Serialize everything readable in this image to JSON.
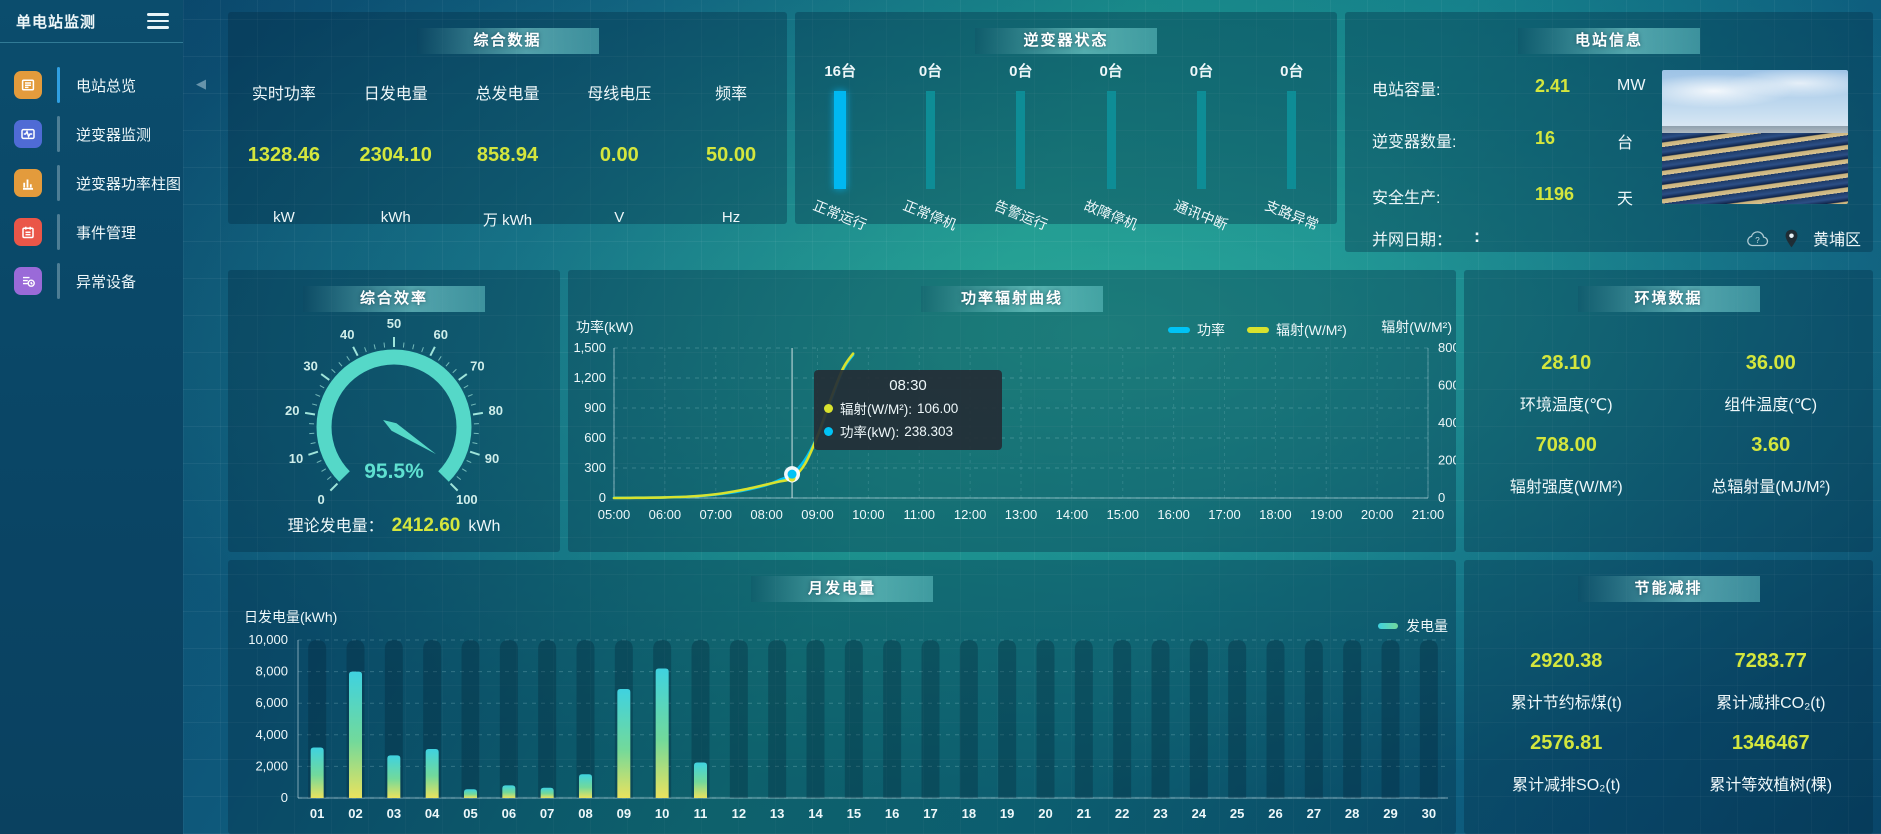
{
  "app": {
    "title": "单电站监测",
    "collapse_icon": "◀"
  },
  "sidebar": {
    "items": [
      {
        "label": "电站总览",
        "icon": "station-overview-icon",
        "icon_bg": "#e39b3c",
        "active": true
      },
      {
        "label": "逆变器监测",
        "icon": "inverter-monitor-icon",
        "icon_bg": "#4f6bd5",
        "active": false
      },
      {
        "label": "逆变器功率柱图",
        "icon": "inverter-power-bars-icon",
        "icon_bg": "#e39b3c",
        "active": false
      },
      {
        "label": "事件管理",
        "icon": "event-management-icon",
        "icon_bg": "#ea5648",
        "active": false
      },
      {
        "label": "异常设备",
        "icon": "abnormal-device-icon",
        "icon_bg": "#9a6ad8",
        "active": false
      }
    ]
  },
  "summary": {
    "title": "综合数据",
    "metrics": [
      {
        "label": "实时功率",
        "value": "1328.46",
        "unit": "kW"
      },
      {
        "label": "日发电量",
        "value": "2304.10",
        "unit": "kWh"
      },
      {
        "label": "总发电量",
        "value": "858.94",
        "unit": "万 kWh"
      },
      {
        "label": "母线电压",
        "value": "0.00",
        "unit": "V"
      },
      {
        "label": "频率",
        "value": "50.00",
        "unit": "Hz"
      }
    ]
  },
  "inverter_status": {
    "title": "逆变器状态",
    "colors": {
      "highlight": "#00b8f1",
      "normal": "#0e8d96"
    },
    "bars": [
      {
        "count": "16台",
        "label": "正常运行",
        "highlight": true
      },
      {
        "count": "0台",
        "label": "正常停机",
        "highlight": false
      },
      {
        "count": "0台",
        "label": "告警运行",
        "highlight": false
      },
      {
        "count": "0台",
        "label": "故障停机",
        "highlight": false
      },
      {
        "count": "0台",
        "label": "通讯中断",
        "highlight": false
      },
      {
        "count": "0台",
        "label": "支路异常",
        "highlight": false
      }
    ]
  },
  "station_info": {
    "title": "电站信息",
    "rows": [
      {
        "label": "电站容量:",
        "value": "2.41",
        "unit": "MW"
      },
      {
        "label": "逆变器数量:",
        "value": "16",
        "unit": "台"
      },
      {
        "label": "安全生产:",
        "value": "1196",
        "unit": "天"
      },
      {
        "label": "并网日期：",
        "value": ":",
        "unit": ""
      }
    ],
    "location": "黄埔区"
  },
  "efficiency": {
    "title": "综合效率",
    "value_label": "95.5%",
    "footer_label": "理论发电量：",
    "footer_value": "2412.60",
    "footer_unit": "kWh"
  },
  "power_curve": {
    "title": "功率辐射曲线",
    "tooltip": {
      "time": "08:30",
      "rows": [
        {
          "name": "辐射(W/M²):",
          "value": "106.00",
          "color": "#d8e22e"
        },
        {
          "name": "功率(kW):",
          "value": "238.303",
          "color": "#00c3f5"
        }
      ]
    }
  },
  "environment": {
    "title": "环境数据",
    "metrics": [
      {
        "value": "28.10",
        "label": "环境温度(℃)"
      },
      {
        "value": "36.00",
        "label": "组件温度(℃)"
      },
      {
        "value": "708.00",
        "label": "辐射强度(W/M²)"
      },
      {
        "value": "3.60",
        "label": "总辐射量(MJ/M²)"
      }
    ]
  },
  "monthly": {
    "title": "月发电量"
  },
  "saving": {
    "title": "节能减排",
    "metrics": [
      {
        "value": "2920.38",
        "label": "累计节约标煤(t)"
      },
      {
        "value": "7283.77",
        "label": "累计减排CO₂(t)"
      },
      {
        "value": "2576.81",
        "label": "累计减排SO₂(t)"
      },
      {
        "value": "1346467",
        "label": "累计等效植树(棵)"
      }
    ]
  },
  "chart_data": [
    {
      "type": "gauge",
      "title": "综合效率",
      "min": 0,
      "max": 100,
      "value": 95.5,
      "unit": "%",
      "major_ticks": [
        0,
        10,
        20,
        30,
        40,
        50,
        60,
        70,
        80,
        90,
        100
      ],
      "color": "#55d8c8"
    },
    {
      "type": "line",
      "title": "功率辐射曲线",
      "x_hours": [
        5,
        5.5,
        6,
        6.5,
        7,
        7.5,
        8,
        8.25,
        8.5,
        8.75,
        9,
        9.25,
        9.5,
        9.7
      ],
      "series": [
        {
          "name": "功率",
          "axis": "left",
          "color": "#00c3f5",
          "values": [
            2,
            3,
            6,
            14,
            34,
            70,
            130,
            180,
            238.3,
            380,
            620,
            950,
            1280,
            1430
          ]
        },
        {
          "name": "辐射(W/M²)",
          "axis": "right",
          "color": "#d8e22e",
          "values": [
            0,
            1,
            3,
            8,
            20,
            42,
            72,
            88,
            106,
            180,
            330,
            520,
            690,
            770
          ]
        }
      ],
      "y_left": {
        "name": "功率(kW)",
        "min": 0,
        "max": 1500,
        "tick_labels": [
          "0",
          "300",
          "600",
          "900",
          "1,200",
          "1,500"
        ]
      },
      "y_right": {
        "name": "辐射(W/M²)",
        "min": 0,
        "max": 800,
        "tick_labels": [
          "0",
          "200",
          "400",
          "600",
          "800"
        ]
      },
      "x_tick_labels": [
        "05:00",
        "06:00",
        "07:00",
        "08:00",
        "09:00",
        "10:00",
        "11:00",
        "12:00",
        "13:00",
        "14:00",
        "15:00",
        "16:00",
        "17:00",
        "18:00",
        "19:00",
        "20:00",
        "21:00"
      ],
      "pointer_hour": 8.5,
      "legend": [
        {
          "name": "功率",
          "color": "#00c3f5"
        },
        {
          "name": "辐射(W/M²)",
          "color": "#d8e22e"
        }
      ]
    },
    {
      "type": "bar",
      "title": "月发电量",
      "ylabel": "日发电量(kWh)",
      "legend": "发电量",
      "categories": [
        "01",
        "02",
        "03",
        "04",
        "05",
        "06",
        "07",
        "08",
        "09",
        "10",
        "11",
        "12",
        "13",
        "14",
        "15",
        "16",
        "17",
        "18",
        "19",
        "20",
        "21",
        "22",
        "23",
        "24",
        "25",
        "26",
        "27",
        "28",
        "29",
        "30"
      ],
      "values": [
        3200,
        8000,
        2700,
        3100,
        550,
        800,
        650,
        1500,
        6900,
        8200,
        2250,
        0,
        0,
        0,
        0,
        0,
        0,
        0,
        0,
        0,
        0,
        0,
        0,
        0,
        0,
        0,
        0,
        0,
        0,
        0
      ],
      "ylim": [
        0,
        10000
      ],
      "y_tick_labels": [
        "0",
        "2,000",
        "4,000",
        "6,000",
        "8,000",
        "10,000"
      ],
      "bar_gradient": [
        "#3fd2e0",
        "#72d99b",
        "#e9e25e"
      ]
    }
  ]
}
